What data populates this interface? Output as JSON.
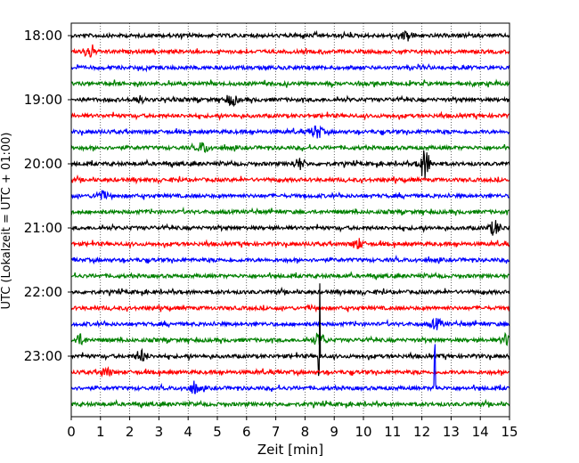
{
  "chart_data": {
    "type": "line",
    "title": "",
    "xlabel": "Zeit  [min]",
    "ylabel": "UTC (Lokalzeit = UTC + 01:00)",
    "xlim": [
      0,
      15
    ],
    "x_ticks": [
      0,
      1,
      2,
      3,
      4,
      5,
      6,
      7,
      8,
      9,
      10,
      11,
      12,
      13,
      14,
      15
    ],
    "y_tick_labels": [
      "18:00",
      "19:00",
      "20:00",
      "21:00",
      "22:00",
      "23:00"
    ],
    "grid": "vertical dotted",
    "legend": "none",
    "trace_colors": [
      "#000000",
      "#ff0000",
      "#0000ff",
      "#008000"
    ],
    "trace_interval_minutes": 15,
    "traces": [
      {
        "start": "18:00",
        "color": "#000000",
        "events": [
          {
            "t": 11.5,
            "amp": 0.3
          }
        ]
      },
      {
        "start": "18:15",
        "color": "#ff0000",
        "events": [
          {
            "t": 0.6,
            "amp": 0.35
          }
        ]
      },
      {
        "start": "18:30",
        "color": "#0000ff",
        "events": []
      },
      {
        "start": "18:45",
        "color": "#008000",
        "events": []
      },
      {
        "start": "19:00",
        "color": "#000000",
        "events": [
          {
            "t": 5.5,
            "amp": 0.3
          },
          {
            "t": 2.3,
            "amp": 0.2
          }
        ]
      },
      {
        "start": "19:15",
        "color": "#ff0000",
        "events": []
      },
      {
        "start": "19:30",
        "color": "#0000ff",
        "events": [
          {
            "t": 8.4,
            "amp": 0.4
          }
        ]
      },
      {
        "start": "19:45",
        "color": "#008000",
        "events": [
          {
            "t": 4.5,
            "amp": 0.3
          }
        ]
      },
      {
        "start": "20:00",
        "color": "#000000",
        "events": [
          {
            "t": 12.1,
            "amp": 0.9
          },
          {
            "t": 7.8,
            "amp": 0.3
          }
        ]
      },
      {
        "start": "20:15",
        "color": "#ff0000",
        "events": []
      },
      {
        "start": "20:30",
        "color": "#0000ff",
        "events": [
          {
            "t": 1.0,
            "amp": 0.25
          }
        ]
      },
      {
        "start": "20:45",
        "color": "#008000",
        "events": []
      },
      {
        "start": "21:00",
        "color": "#000000",
        "events": [
          {
            "t": 14.5,
            "amp": 0.45
          }
        ]
      },
      {
        "start": "21:15",
        "color": "#ff0000",
        "events": [
          {
            "t": 9.8,
            "amp": 0.3
          }
        ]
      },
      {
        "start": "21:30",
        "color": "#0000ff",
        "events": []
      },
      {
        "start": "21:45",
        "color": "#008000",
        "events": []
      },
      {
        "start": "22:00",
        "color": "#000000",
        "events": []
      },
      {
        "start": "22:15",
        "color": "#ff0000",
        "events": []
      },
      {
        "start": "22:30",
        "color": "#0000ff",
        "events": [
          {
            "t": 12.5,
            "amp": 0.3
          }
        ]
      },
      {
        "start": "22:45",
        "color": "#008000",
        "events": [
          {
            "t": 8.5,
            "amp": 0.4
          },
          {
            "t": 0.3,
            "amp": 0.3
          },
          {
            "t": 14.9,
            "amp": 0.35
          }
        ]
      },
      {
        "start": "23:00",
        "color": "#000000",
        "events": [
          {
            "t": 8.5,
            "amp": 6.0
          },
          {
            "t": 2.4,
            "amp": 0.35
          }
        ]
      },
      {
        "start": "23:15",
        "color": "#ff0000",
        "events": [
          {
            "t": 1.2,
            "amp": 0.25
          }
        ]
      },
      {
        "start": "23:30",
        "color": "#0000ff",
        "events": [
          {
            "t": 12.45,
            "amp": 5.0
          },
          {
            "t": 4.2,
            "amp": 0.3
          }
        ]
      },
      {
        "start": "23:45",
        "color": "#008000",
        "events": []
      }
    ]
  }
}
